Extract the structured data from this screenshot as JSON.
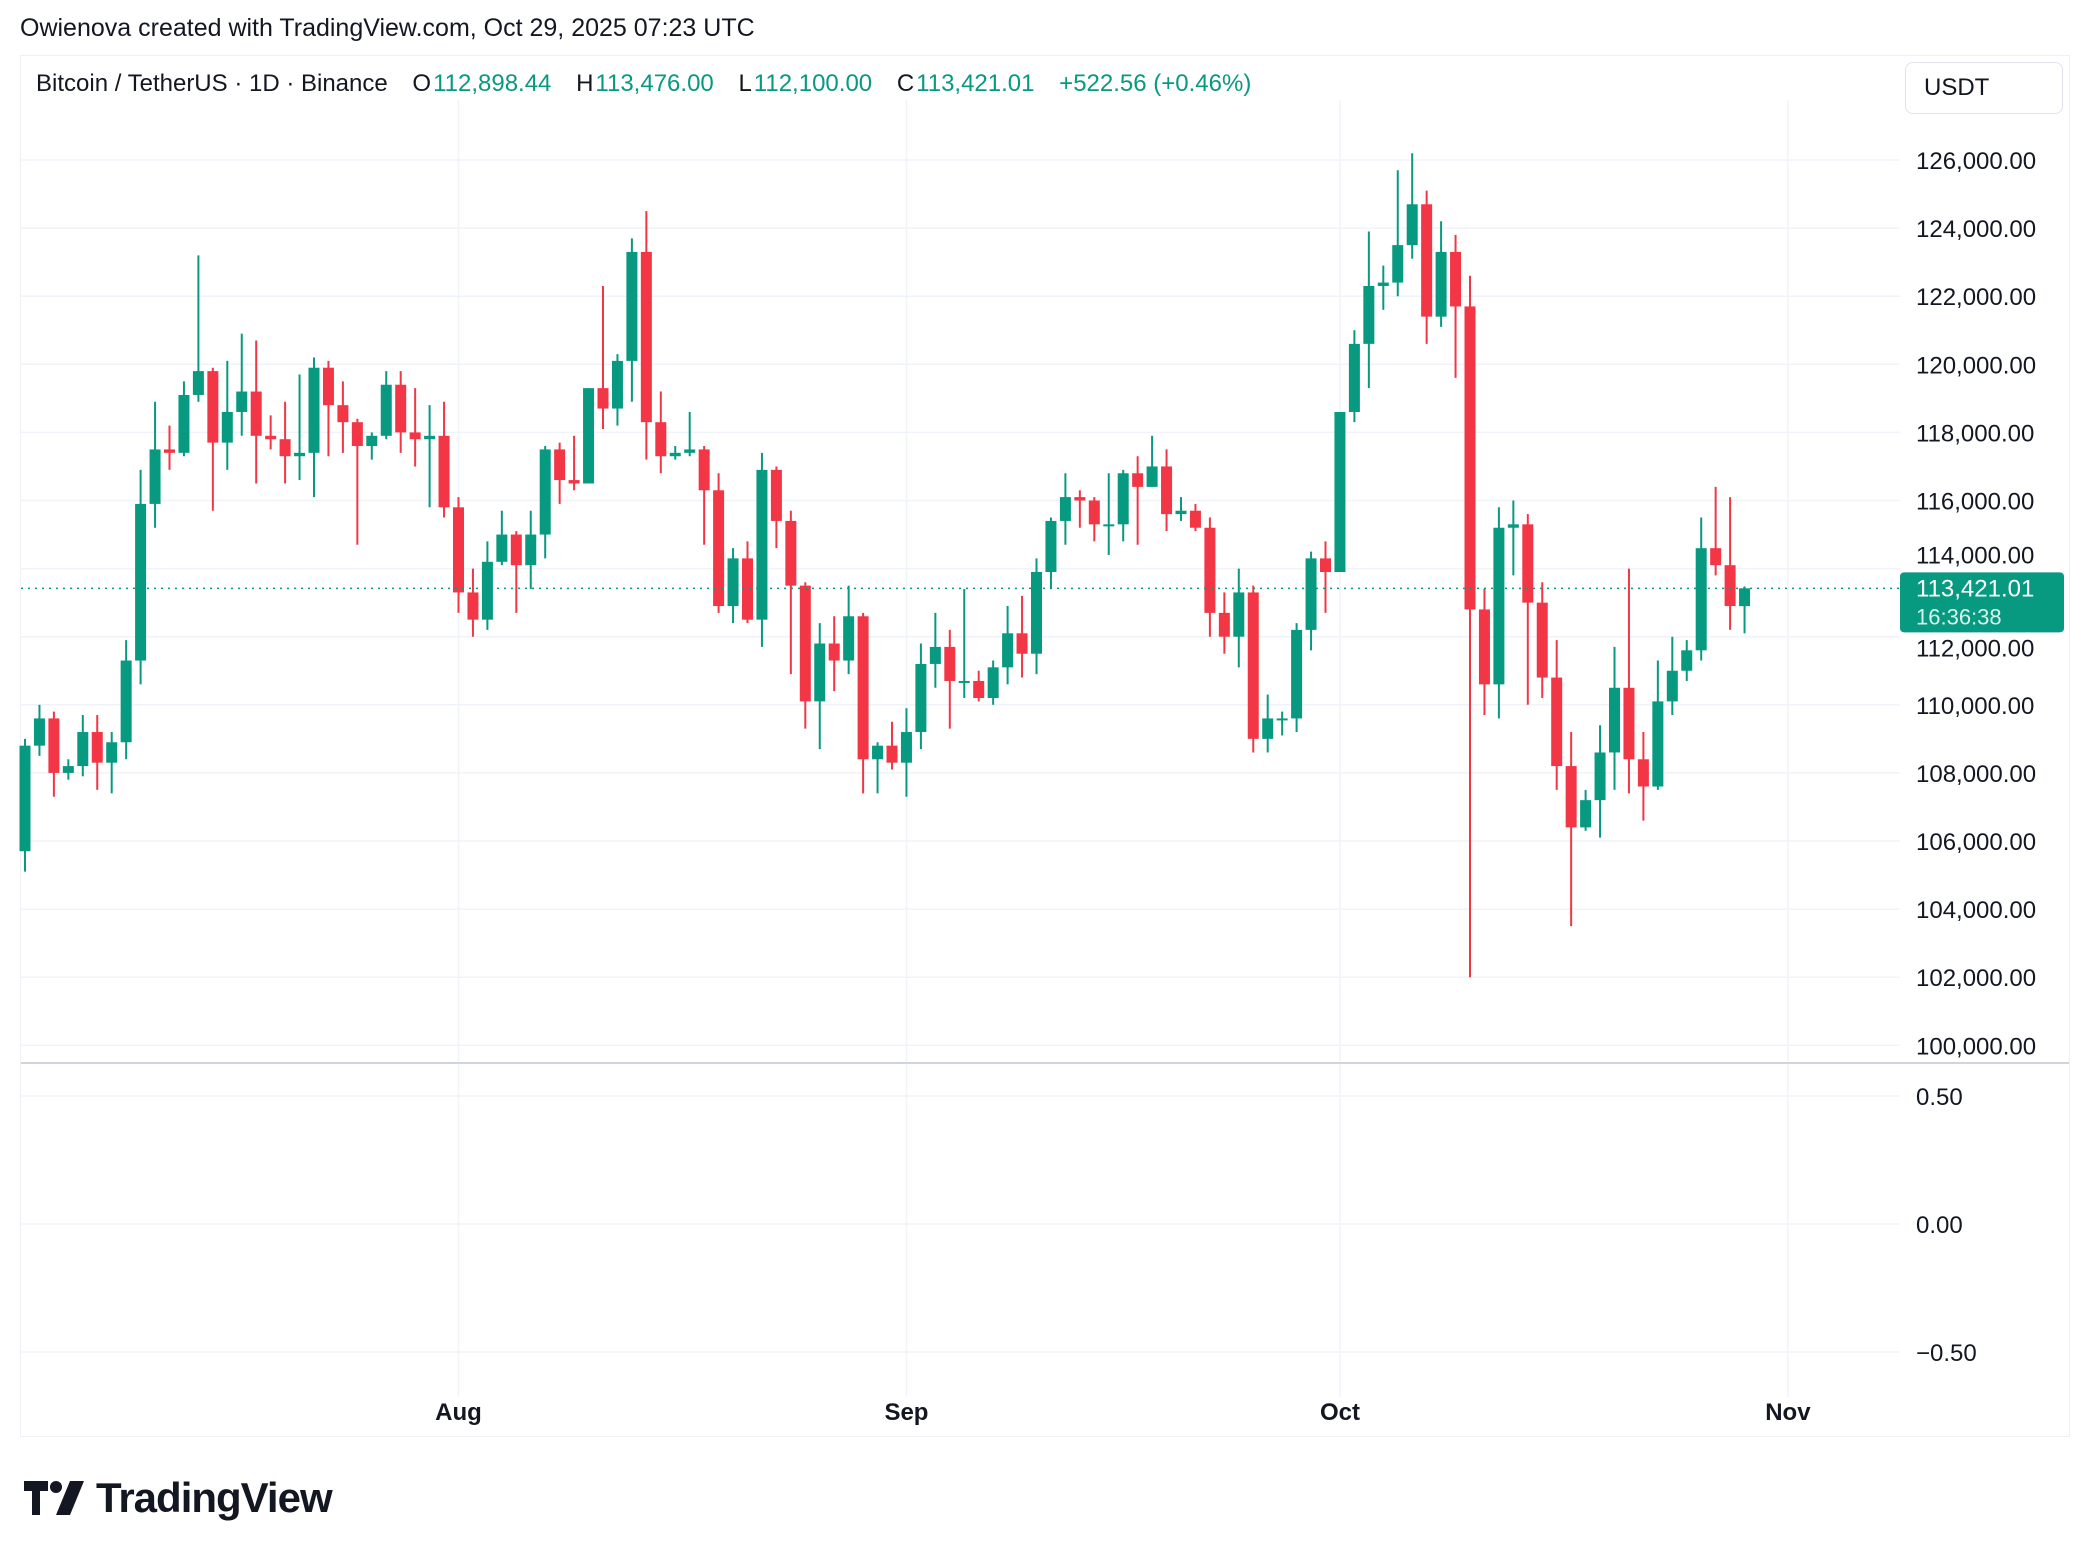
{
  "credit": "Owienova created with TradingView.com, Oct 29, 2025 07:23 UTC",
  "legend": {
    "symbol": "Bitcoin / TetherUS · 1D · Binance",
    "o_label": "O",
    "o": "112,898.44",
    "h_label": "H",
    "h": "113,476.00",
    "l_label": "L",
    "l": "112,100.00",
    "c_label": "C",
    "c": "113,421.01",
    "change": "+522.56 (+0.46%)"
  },
  "currency": "USDT",
  "logo_text": "TradingView",
  "colors": {
    "up": "#089981",
    "down": "#F23645",
    "grid": "#f0f3fa"
  },
  "chart_data": {
    "type": "candlestick",
    "title": "Bitcoin / TetherUS · 1D · Binance",
    "ylim": [
      99500,
      127000
    ],
    "yticks": [
      100000,
      102000,
      104000,
      106000,
      108000,
      110000,
      112000,
      114000,
      116000,
      118000,
      120000,
      122000,
      124000,
      126000
    ],
    "ytick_labels": [
      "100,000.00",
      "102,000.00",
      "104,000.00",
      "106,000.00",
      "108,000.00",
      "110,000.00",
      "112,000.00",
      "114,000.00",
      "116,000.00",
      "118,000.00",
      "120,000.00",
      "122,000.00",
      "124,000.00",
      "126,000.00"
    ],
    "xticks": [
      {
        "label": "Aug",
        "date": "Aug 1"
      },
      {
        "label": "Sep",
        "date": "Sep 1"
      },
      {
        "label": "Oct",
        "date": "Oct 1"
      },
      {
        "label": "Nov",
        "date": "Nov 1"
      }
    ],
    "grid": true,
    "last_price": 113421.01,
    "last_price_label": "113,421.01",
    "countdown": "16:36:38",
    "fields": [
      "date",
      "open",
      "high",
      "low",
      "close"
    ],
    "candles": [
      [
        "Jul 2",
        105700,
        109000,
        105100,
        108800
      ],
      [
        "Jul 3",
        108800,
        110000,
        108500,
        109600
      ],
      [
        "Jul 4",
        109600,
        109800,
        107300,
        108000
      ],
      [
        "Jul 5",
        108000,
        108400,
        107800,
        108200
      ],
      [
        "Jul 6",
        108200,
        109700,
        107900,
        109200
      ],
      [
        "Jul 7",
        109200,
        109700,
        107500,
        108300
      ],
      [
        "Jul 8",
        108300,
        109200,
        107400,
        108900
      ],
      [
        "Jul 9",
        108900,
        111900,
        108400,
        111300
      ],
      [
        "Jul 10",
        111300,
        116900,
        110600,
        115900
      ],
      [
        "Jul 11",
        115900,
        118900,
        115200,
        117500
      ],
      [
        "Jul 12",
        117500,
        118200,
        116900,
        117400
      ],
      [
        "Jul 13",
        117400,
        119500,
        117300,
        119100
      ],
      [
        "Jul 14",
        119100,
        123200,
        118900,
        119800
      ],
      [
        "Jul 15",
        119800,
        119900,
        115700,
        117700
      ],
      [
        "Jul 16",
        117700,
        120100,
        116900,
        118600
      ],
      [
        "Jul 17",
        118600,
        120900,
        117900,
        119200
      ],
      [
        "Jul 18",
        119200,
        120700,
        116500,
        117900
      ],
      [
        "Jul 19",
        117900,
        118500,
        117500,
        117800
      ],
      [
        "Jul 20",
        117800,
        118900,
        116500,
        117300
      ],
      [
        "Jul 21",
        117300,
        119700,
        116600,
        117400
      ],
      [
        "Jul 22",
        117400,
        120200,
        116100,
        119900
      ],
      [
        "Jul 23",
        119900,
        120100,
        117300,
        118800
      ],
      [
        "Jul 24",
        118800,
        119500,
        117400,
        118300
      ],
      [
        "Jul 25",
        118300,
        118400,
        114700,
        117600
      ],
      [
        "Jul 26",
        117600,
        118000,
        117200,
        117900
      ],
      [
        "Jul 27",
        117900,
        119800,
        117800,
        119400
      ],
      [
        "Jul 28",
        119400,
        119800,
        117400,
        118000
      ],
      [
        "Jul 29",
        118000,
        119300,
        117000,
        117800
      ],
      [
        "Jul 30",
        117800,
        118800,
        115800,
        117900
      ],
      [
        "Jul 31",
        117900,
        118900,
        115500,
        115800
      ],
      [
        "Aug 1",
        115800,
        116100,
        112700,
        113300
      ],
      [
        "Aug 2",
        113300,
        114000,
        112000,
        112500
      ],
      [
        "Aug 3",
        112500,
        114800,
        112200,
        114200
      ],
      [
        "Aug 4",
        114200,
        115700,
        114100,
        115000
      ],
      [
        "Aug 5",
        115000,
        115100,
        112700,
        114100
      ],
      [
        "Aug 6",
        114100,
        115700,
        113400,
        115000
      ],
      [
        "Aug 7",
        115000,
        117600,
        114300,
        117500
      ],
      [
        "Aug 8",
        117500,
        117700,
        115900,
        116600
      ],
      [
        "Aug 9",
        116600,
        117900,
        116300,
        116500
      ],
      [
        "Aug 10",
        116500,
        119300,
        116500,
        119300
      ],
      [
        "Aug 11",
        119300,
        122300,
        118100,
        118700
      ],
      [
        "Aug 12",
        118700,
        120300,
        118200,
        120100
      ],
      [
        "Aug 13",
        120100,
        123700,
        118900,
        123300
      ],
      [
        "Aug 14",
        123300,
        124500,
        117200,
        118300
      ],
      [
        "Aug 15",
        118300,
        119200,
        116800,
        117300
      ],
      [
        "Aug 16",
        117300,
        117600,
        117200,
        117400
      ],
      [
        "Aug 17",
        117400,
        118600,
        117300,
        117500
      ],
      [
        "Aug 18",
        117500,
        117600,
        114700,
        116300
      ],
      [
        "Aug 19",
        116300,
        116800,
        112700,
        112900
      ],
      [
        "Aug 20",
        112900,
        114600,
        112400,
        114300
      ],
      [
        "Aug 21",
        114300,
        114800,
        112400,
        112500
      ],
      [
        "Aug 22",
        112500,
        117400,
        111700,
        116900
      ],
      [
        "Aug 23",
        116900,
        117000,
        114600,
        115400
      ],
      [
        "Aug 24",
        115400,
        115700,
        110900,
        113500
      ],
      [
        "Aug 25",
        113500,
        113600,
        109300,
        110100
      ],
      [
        "Aug 26",
        110100,
        112400,
        108700,
        111800
      ],
      [
        "Aug 27",
        111800,
        112600,
        110400,
        111300
      ],
      [
        "Aug 28",
        111300,
        113500,
        110900,
        112600
      ],
      [
        "Aug 29",
        112600,
        112700,
        107400,
        108400
      ],
      [
        "Aug 30",
        108400,
        108900,
        107400,
        108800
      ],
      [
        "Aug 31",
        108800,
        109500,
        108100,
        108300
      ],
      [
        "Sep 1",
        108300,
        109900,
        107300,
        109200
      ],
      [
        "Sep 2",
        109200,
        111800,
        108700,
        111200
      ],
      [
        "Sep 3",
        111200,
        112700,
        110500,
        111700
      ],
      [
        "Sep 4",
        111700,
        112200,
        109300,
        110700
      ],
      [
        "Sep 5",
        110700,
        113400,
        110200,
        110700
      ],
      [
        "Sep 6",
        110700,
        111000,
        110100,
        110200
      ],
      [
        "Sep 7",
        110200,
        111300,
        110000,
        111100
      ],
      [
        "Sep 8",
        111100,
        112900,
        110600,
        112100
      ],
      [
        "Sep 9",
        112100,
        113200,
        110800,
        111500
      ],
      [
        "Sep 10",
        111500,
        114300,
        110900,
        113900
      ],
      [
        "Sep 11",
        113900,
        115500,
        113400,
        115400
      ],
      [
        "Sep 12",
        115400,
        116800,
        114700,
        116100
      ],
      [
        "Sep 13",
        116100,
        116300,
        115200,
        116000
      ],
      [
        "Sep 14",
        116000,
        116100,
        114800,
        115300
      ],
      [
        "Sep 15",
        115300,
        116800,
        114400,
        115300
      ],
      [
        "Sep 16",
        115300,
        116900,
        114800,
        116800
      ],
      [
        "Sep 17",
        116800,
        117300,
        114700,
        116400
      ],
      [
        "Sep 18",
        116400,
        117900,
        116400,
        117000
      ],
      [
        "Sep 19",
        117000,
        117500,
        115100,
        115600
      ],
      [
        "Sep 20",
        115600,
        116100,
        115400,
        115700
      ],
      [
        "Sep 21",
        115700,
        115900,
        115100,
        115200
      ],
      [
        "Sep 22",
        115200,
        115500,
        112000,
        112700
      ],
      [
        "Sep 23",
        112700,
        113300,
        111500,
        112000
      ],
      [
        "Sep 24",
        112000,
        114000,
        111100,
        113300
      ],
      [
        "Sep 25",
        113300,
        113500,
        108600,
        109000
      ],
      [
        "Sep 26",
        109000,
        110300,
        108600,
        109600
      ],
      [
        "Sep 27",
        109600,
        109800,
        109100,
        109600
      ],
      [
        "Sep 28",
        109600,
        112400,
        109200,
        112200
      ],
      [
        "Sep 29",
        112200,
        114500,
        111600,
        114300
      ],
      [
        "Sep 30",
        114300,
        114800,
        112700,
        113900
      ],
      [
        "Oct 1",
        113900,
        118600,
        113900,
        118600
      ],
      [
        "Oct 2",
        118600,
        121000,
        118300,
        120600
      ],
      [
        "Oct 3",
        120600,
        123900,
        119300,
        122300
      ],
      [
        "Oct 4",
        122300,
        122900,
        121600,
        122400
      ],
      [
        "Oct 5",
        122400,
        125700,
        122000,
        123500
      ],
      [
        "Oct 6",
        123500,
        126200,
        123100,
        124700
      ],
      [
        "Oct 7",
        124700,
        125100,
        120600,
        121400
      ],
      [
        "Oct 8",
        121400,
        124200,
        121100,
        123300
      ],
      [
        "Oct 9",
        123300,
        123800,
        119600,
        121700
      ],
      [
        "Oct 10",
        121700,
        122600,
        102000,
        112800
      ],
      [
        "Oct 11",
        112800,
        113400,
        109700,
        110600
      ],
      [
        "Oct 12",
        110600,
        115800,
        109600,
        115200
      ],
      [
        "Oct 13",
        115200,
        116000,
        113800,
        115300
      ],
      [
        "Oct 14",
        115300,
        115600,
        110000,
        113000
      ],
      [
        "Oct 15",
        113000,
        113600,
        110200,
        110800
      ],
      [
        "Oct 16",
        110800,
        111900,
        107500,
        108200
      ],
      [
        "Oct 17",
        108200,
        109200,
        103500,
        106400
      ],
      [
        "Oct 18",
        106400,
        107500,
        106300,
        107200
      ],
      [
        "Oct 19",
        107200,
        109400,
        106100,
        108600
      ],
      [
        "Oct 20",
        108600,
        111700,
        107500,
        110500
      ],
      [
        "Oct 21",
        110500,
        114000,
        107400,
        108400
      ],
      [
        "Oct 22",
        108400,
        109200,
        106600,
        107600
      ],
      [
        "Oct 23",
        107600,
        111300,
        107500,
        110100
      ],
      [
        "Oct 24",
        110100,
        112000,
        109700,
        111000
      ],
      [
        "Oct 25",
        111000,
        111900,
        110700,
        111600
      ],
      [
        "Oct 26",
        111600,
        115500,
        111300,
        114600
      ],
      [
        "Oct 27",
        114600,
        116400,
        113800,
        114100
      ],
      [
        "Oct 28",
        114100,
        116100,
        112200,
        112900
      ],
      [
        "Oct 29",
        112898,
        113476,
        112100,
        113421
      ]
    ],
    "indicator_pane": {
      "yticks": [
        0.5,
        0,
        -0.5
      ],
      "ytick_labels": [
        "0.50",
        "0.00",
        "−0.50"
      ]
    }
  }
}
